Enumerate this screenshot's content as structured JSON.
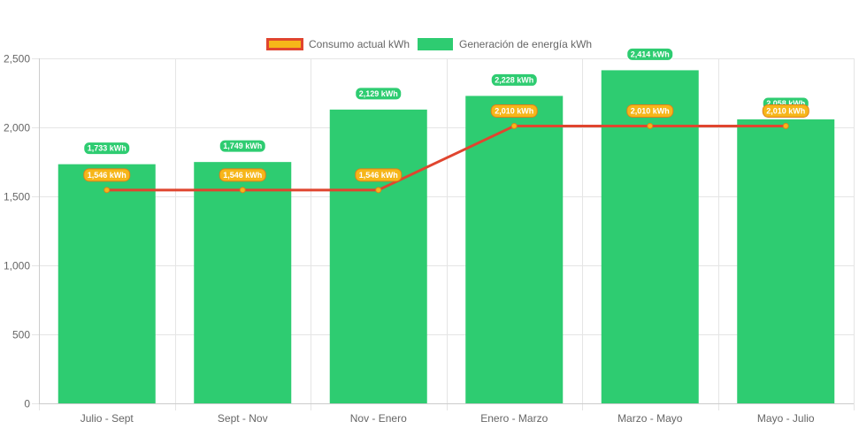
{
  "chart_data": {
    "type": "bar",
    "categories": [
      "Julio - Sept",
      "Sept - Nov",
      "Nov - Enero",
      "Enero - Marzo",
      "Marzo - Mayo",
      "Mayo - Julio"
    ],
    "series": [
      {
        "name": "Consumo actual kWh",
        "type": "line",
        "values": [
          1546,
          1546,
          1546,
          2010,
          2010,
          2010
        ],
        "labels": [
          "1,546 kWh",
          "1,546 kWh",
          "1,546 kWh",
          "2,010 kWh",
          "2,010 kWh",
          "2,010 kWh"
        ],
        "line_color": "#e0452f",
        "point_fill": "#f6b619",
        "label_bg": "#f6b619",
        "label_border": "#e07f1a"
      },
      {
        "name": "Generación de energía kWh",
        "type": "bar",
        "values": [
          1733,
          1749,
          2129,
          2228,
          2414,
          2058
        ],
        "labels": [
          "1,733 kWh",
          "1,749 kWh",
          "2,129 kWh",
          "2,228 kWh",
          "2,414 kWh",
          "2,058 kWh"
        ],
        "color": "#2ecc71"
      }
    ],
    "ylim": [
      0,
      2500
    ],
    "yticks": [
      0,
      500,
      1000,
      1500,
      2000,
      2500
    ],
    "ytick_labels": [
      "0",
      "500",
      "1,000",
      "1,500",
      "2,000",
      "2,500"
    ],
    "grid": true,
    "legend_position": "top"
  }
}
